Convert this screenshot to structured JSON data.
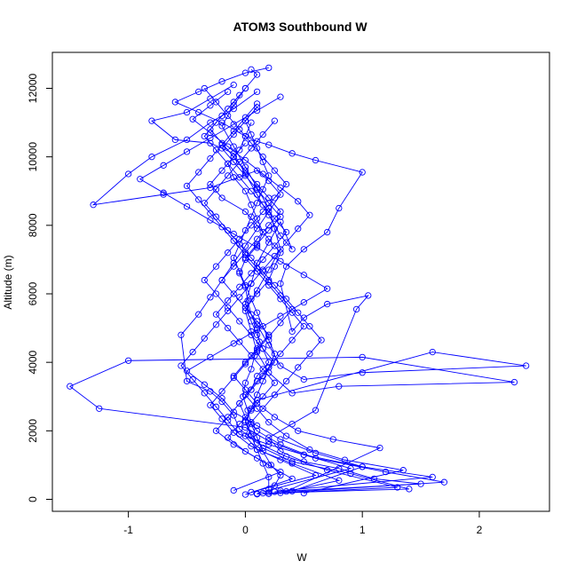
{
  "chart_data": {
    "type": "line",
    "title": "ATOM3 Southbound W",
    "xlabel": "W",
    "ylabel": "Altitude (m)",
    "xlim": [
      -1.65,
      2.6
    ],
    "ylim": [
      -350,
      13050
    ],
    "xticks": [
      -1,
      0,
      1,
      2
    ],
    "yticks": [
      0,
      2000,
      4000,
      6000,
      8000,
      10000,
      12000
    ],
    "xtick_labels": [
      "-1",
      "0",
      "1",
      "2"
    ],
    "ytick_labels": [
      "0",
      "2000",
      "4000",
      "6000",
      "8000",
      "10000",
      "12000"
    ],
    "grid": false,
    "legend": "none",
    "marker": "open-circle",
    "series_color": "#0000ff",
    "series": [
      {
        "x": [
          0.2,
          0.25,
          0.3,
          0.22,
          0.15,
          0.1,
          0.05,
          0.02,
          -0.02,
          0.0,
          0.05,
          0.08,
          0.12,
          0.1,
          0.05,
          0.02,
          0.0,
          -0.05,
          0.0,
          0.1,
          0.15,
          0.1,
          0.05,
          0.0,
          -0.1,
          -0.15,
          -0.05,
          0.0,
          0.05
        ],
        "y": [
          200,
          400,
          700,
          1000,
          1400,
          1800,
          2200,
          2600,
          3000,
          3400,
          3800,
          4200,
          4600,
          5000,
          5400,
          5800,
          6200,
          6600,
          7000,
          7400,
          7800,
          8200,
          8600,
          9000,
          9400,
          9800,
          10200,
          10600,
          11000
        ]
      },
      {
        "x": [
          0.1,
          1.7,
          1.2,
          0.6,
          0.3,
          0.1,
          0.0,
          -0.05,
          0.05,
          0.1,
          0.2,
          0.15,
          0.1,
          0.05,
          0.0,
          0.1,
          0.2,
          0.25,
          0.3,
          0.2,
          0.1,
          0.0,
          -0.2,
          -0.3,
          -0.2,
          -0.1,
          0.0
        ],
        "y": [
          150,
          500,
          800,
          1200,
          1600,
          2000,
          2400,
          2800,
          3200,
          3600,
          4000,
          4400,
          4800,
          5200,
          5600,
          6000,
          6400,
          6800,
          7200,
          7600,
          8000,
          8400,
          8800,
          9200,
          9600,
          10000,
          10400
        ]
      },
      {
        "x": [
          0.3,
          1.6,
          1.0,
          0.5,
          0.2,
          0.0,
          -1.25,
          -1.5,
          -1.0,
          1.0,
          2.3,
          0.8,
          0.4,
          0.2,
          0.1,
          0.05,
          0.0,
          0.1,
          0.2,
          0.3,
          0.25,
          0.2,
          0.1,
          0.0,
          -0.1,
          -0.2,
          -0.1,
          0.0,
          0.1,
          0.05
        ],
        "y": [
          250,
          650,
          950,
          1300,
          1700,
          2100,
          2650,
          3300,
          4050,
          4150,
          3420,
          3300,
          3100,
          3700,
          4300,
          4900,
          5500,
          6100,
          6700,
          7300,
          7900,
          8500,
          9100,
          9700,
          10300,
          10900,
          11500,
          12000,
          12400,
          12550
        ]
      },
      {
        "x": [
          0.15,
          1.4,
          0.9,
          0.4,
          0.15,
          0.05,
          0.0,
          0.1,
          1.6,
          2.4,
          1.0,
          0.5,
          0.3,
          0.2,
          0.1,
          0.0,
          0.05,
          0.1,
          0.2,
          0.3,
          0.4,
          0.3,
          0.2,
          0.1,
          0.0,
          -0.1,
          -0.3,
          -0.6,
          -0.8,
          -0.5,
          -0.3,
          -0.1
        ],
        "y": [
          180,
          300,
          750,
          1100,
          1500,
          1900,
          2300,
          2900,
          4300,
          3900,
          3700,
          3500,
          3900,
          4500,
          5100,
          5700,
          6300,
          6900,
          7500,
          8100,
          7300,
          7700,
          8300,
          8900,
          9500,
          10100,
          10400,
          10500,
          11050,
          11300,
          11700,
          12100
        ]
      },
      {
        "x": [
          0.2,
          1.3,
          0.7,
          0.35,
          0.1,
          -0.05,
          -0.1,
          -0.2,
          -0.3,
          -0.5,
          -0.55,
          -0.4,
          -0.3,
          -0.2,
          -0.1,
          0.0,
          0.1,
          0.2,
          0.3,
          0.2,
          0.1,
          -0.3,
          -0.7,
          -1.3,
          -1.0,
          -0.8,
          -0.5,
          -0.3,
          -0.1,
          0.1
        ],
        "y": [
          160,
          350,
          850,
          1250,
          1650,
          2050,
          2450,
          2850,
          3150,
          3450,
          4800,
          5400,
          5900,
          6400,
          6900,
          7400,
          7900,
          8400,
          8900,
          9300,
          9600,
          9100,
          8900,
          8600,
          9500,
          10000,
          10500,
          11000,
          11400,
          11900
        ]
      },
      {
        "x": [
          0.25,
          1.5,
          1.1,
          0.8,
          0.5,
          0.3,
          0.2,
          0.4,
          0.6,
          0.95,
          1.05,
          0.7,
          0.5,
          0.4,
          0.3,
          0.35,
          0.5,
          0.7,
          0.8,
          1.0,
          0.6,
          0.4,
          0.2,
          0.1,
          0.0,
          -0.2,
          -0.4,
          -0.6,
          -0.4,
          -0.2,
          0.0,
          0.2
        ],
        "y": [
          220,
          450,
          600,
          900,
          1100,
          1400,
          1800,
          2200,
          2600,
          5550,
          5950,
          5700,
          5300,
          4900,
          6300,
          6800,
          7300,
          7800,
          8500,
          9550,
          9900,
          10100,
          10350,
          10450,
          10600,
          11000,
          11300,
          11600,
          11900,
          12200,
          12450,
          12600
        ]
      },
      {
        "x": [
          0.1,
          0.9,
          0.5,
          0.2,
          -0.05,
          -0.15,
          -0.25,
          -0.35,
          -0.45,
          -0.55,
          -0.45,
          -0.35,
          -0.25,
          -0.15,
          -0.05,
          0.05,
          0.15,
          0.25,
          0.35,
          0.45,
          0.55,
          0.45,
          0.3,
          0.15,
          0.0,
          -0.15,
          -0.3,
          -0.45,
          -0.3,
          -0.15
        ],
        "y": [
          170,
          900,
          1300,
          1600,
          1900,
          2300,
          2700,
          3100,
          3500,
          3900,
          4300,
          4700,
          5100,
          5500,
          5900,
          6300,
          6700,
          7100,
          7500,
          7900,
          8300,
          8700,
          9100,
          9500,
          9900,
          10300,
          10700,
          11100,
          11500,
          11900
        ]
      },
      {
        "x": [
          0.3,
          0.8,
          0.4,
          0.1,
          0.0,
          0.05,
          0.15,
          0.25,
          0.35,
          0.45,
          0.55,
          0.65,
          0.55,
          0.45,
          0.35,
          0.25,
          0.15,
          0.05,
          -0.05,
          -0.15,
          -0.25,
          -0.35,
          -0.25,
          -0.15,
          -0.05,
          0.05,
          0.15,
          0.25
        ],
        "y": [
          190,
          550,
          1050,
          1450,
          1850,
          2250,
          2650,
          3050,
          3450,
          3850,
          4250,
          4650,
          5050,
          5450,
          5850,
          6250,
          6650,
          7050,
          7450,
          7850,
          8250,
          8650,
          9050,
          9450,
          9850,
          10250,
          10650,
          11050
        ]
      },
      {
        "x": [
          0.05,
          0.6,
          0.3,
          0.05,
          -0.1,
          -0.2,
          -0.3,
          -0.2,
          -0.1,
          0.0,
          0.1,
          0.2,
          0.3,
          0.4,
          0.3,
          0.2,
          0.1,
          0.0,
          -0.1,
          -0.2,
          -0.3,
          -0.4,
          -0.5,
          -0.4,
          -0.3,
          -0.2,
          -0.1,
          0.0,
          0.1
        ],
        "y": [
          210,
          700,
          1150,
          1550,
          1950,
          2350,
          2750,
          3150,
          3550,
          3950,
          4350,
          4750,
          5150,
          5550,
          5950,
          6350,
          6750,
          7150,
          7550,
          7950,
          8350,
          8750,
          9150,
          9550,
          9950,
          10350,
          10750,
          11150,
          11550
        ]
      },
      {
        "x": [
          0.35,
          1.15,
          0.75,
          0.45,
          0.25,
          0.1,
          0.0,
          -0.1,
          0.0,
          0.1,
          0.2,
          0.1,
          0.0,
          -0.1,
          -0.2,
          -0.1,
          0.0,
          0.1,
          0.2,
          0.3,
          0.2,
          0.1,
          0.0,
          -0.1,
          -0.2,
          -0.3,
          -0.2,
          -0.1,
          0.0
        ],
        "y": [
          230,
          1500,
          1750,
          2000,
          2400,
          2800,
          3200,
          3600,
          4000,
          4400,
          4800,
          5200,
          5600,
          6000,
          6400,
          6800,
          7200,
          7600,
          8000,
          8400,
          8800,
          9200,
          9600,
          10000,
          10400,
          10800,
          11200,
          11600,
          12000
        ]
      },
      {
        "x": [
          0.0,
          0.4,
          0.2,
          0.0,
          -0.15,
          -0.05,
          0.05,
          0.15,
          0.25,
          0.15,
          0.05,
          -0.05,
          -0.15,
          -0.25,
          -0.15,
          -0.05,
          0.05,
          0.15,
          0.25,
          0.35,
          0.25,
          0.15,
          0.05,
          -0.05,
          -0.15,
          -0.25,
          -0.35,
          -0.25,
          -0.15,
          -0.05
        ],
        "y": [
          140,
          600,
          1000,
          1400,
          1800,
          2200,
          2600,
          3000,
          3400,
          3800,
          4200,
          4600,
          5000,
          5400,
          5800,
          6200,
          6600,
          7000,
          7400,
          7800,
          8200,
          8600,
          9000,
          9400,
          9800,
          10200,
          10600,
          11000,
          11400,
          11800
        ]
      },
      {
        "x": [
          0.4,
          1.0,
          0.6,
          0.3,
          0.1,
          -0.1,
          -0.2,
          -0.35,
          -0.5,
          -0.3,
          -0.1,
          0.1,
          0.3,
          0.5,
          0.7,
          0.5,
          0.3,
          0.1,
          -0.1,
          -0.3,
          -0.5,
          -0.7,
          -0.9,
          -0.7,
          -0.5,
          -0.3,
          -0.1,
          0.1,
          0.3
        ],
        "y": [
          240,
          950,
          1350,
          1750,
          2150,
          2550,
          2950,
          3350,
          3750,
          4150,
          4550,
          4950,
          5350,
          5750,
          6150,
          6550,
          6950,
          7350,
          7750,
          8150,
          8550,
          8950,
          9350,
          9750,
          10150,
          10550,
          10950,
          11350,
          11750
        ]
      },
      {
        "x": [
          -0.1,
          0.3,
          0.1,
          -0.1,
          -0.25,
          -0.15,
          -0.05,
          0.05,
          0.15,
          0.25,
          0.15,
          0.05,
          -0.05,
          -0.15,
          -0.25,
          -0.35,
          -0.25,
          -0.15,
          -0.05,
          0.05,
          0.15,
          0.25,
          0.35,
          0.25,
          0.15,
          0.05,
          -0.05,
          -0.15,
          -0.25,
          -0.35
        ],
        "y": [
          260,
          800,
          1200,
          1600,
          2000,
          2400,
          2800,
          3200,
          3600,
          4000,
          4400,
          4800,
          5200,
          5600,
          6000,
          6400,
          6800,
          7200,
          7600,
          8000,
          8400,
          8800,
          9200,
          9600,
          10000,
          10400,
          10800,
          11200,
          11600,
          12000
        ]
      },
      {
        "x": [
          0.5,
          1.35,
          0.85,
          0.55,
          0.35,
          0.2,
          0.1,
          0.0,
          0.1,
          0.2,
          0.3,
          0.4,
          0.5,
          0.4,
          0.3,
          0.2,
          0.1,
          0.0,
          0.1,
          0.2,
          0.3,
          0.2,
          0.1,
          0.0,
          -0.1,
          -0.2,
          -0.1,
          0.0,
          0.1
        ],
        "y": [
          180,
          850,
          1150,
          1450,
          1850,
          2250,
          2650,
          3050,
          3450,
          3850,
          4250,
          4650,
          5050,
          5450,
          5850,
          6250,
          6650,
          7050,
          7450,
          7850,
          8250,
          8650,
          9050,
          9450,
          9850,
          10250,
          10650,
          11050,
          11450
        ]
      },
      {
        "x": [
          0.2,
          0.2,
          0.15,
          0.1,
          0.05,
          0.0,
          0.05,
          0.1,
          0.15,
          0.2,
          0.25,
          0.2,
          0.15,
          0.1,
          0.05,
          0.0,
          -0.05,
          -0.1,
          -0.05,
          0.0,
          0.05,
          0.1,
          0.15,
          0.2,
          0.15,
          0.1,
          0.05,
          0.0
        ],
        "y": [
          300,
          650,
          1050,
          1450,
          1850,
          2250,
          2650,
          3050,
          3450,
          3850,
          4250,
          4650,
          5050,
          5450,
          5850,
          6250,
          6650,
          7050,
          7450,
          7850,
          8250,
          8650,
          9050,
          9450,
          9850,
          10250,
          10650,
          11050
        ]
      }
    ]
  }
}
